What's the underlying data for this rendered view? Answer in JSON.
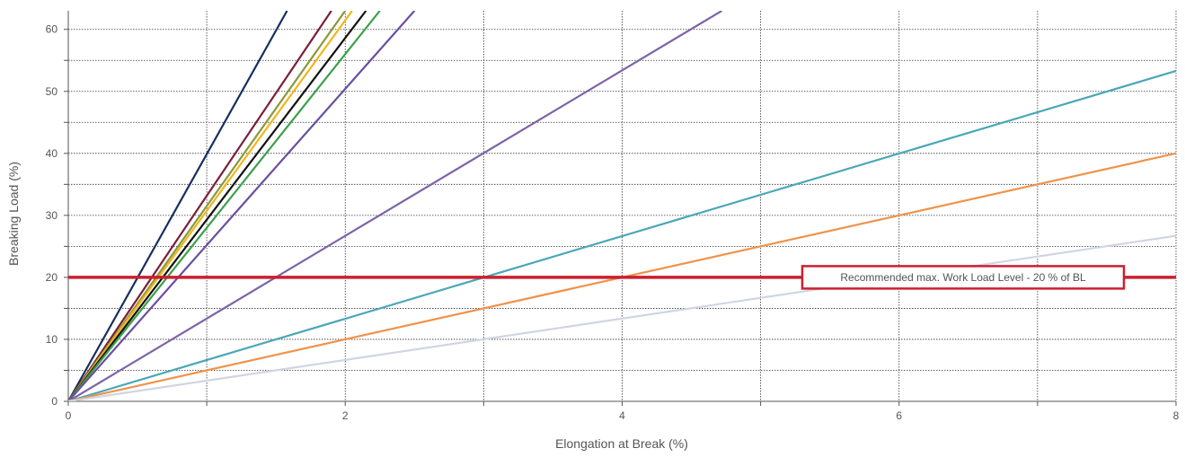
{
  "chart_data": {
    "type": "line",
    "title": "",
    "xlabel": "Elongation at Break (%)",
    "ylabel": "Breaking Load (%)",
    "xlim": [
      0,
      8
    ],
    "ylim": [
      0,
      63
    ],
    "x_ticks": [
      "0",
      "2",
      "4",
      "6",
      "8"
    ],
    "y_ticks": [
      "0",
      "10",
      "20",
      "30",
      "40",
      "50",
      "60"
    ],
    "grid": true,
    "series": [
      {
        "color": "#17305e",
        "x": [
          0,
          1.58
        ],
        "y": [
          0,
          63
        ]
      },
      {
        "color": "#7a1f3a",
        "x": [
          0,
          1.9
        ],
        "y": [
          0,
          63
        ]
      },
      {
        "color": "#8a9a3c",
        "x": [
          0,
          2.0
        ],
        "y": [
          0,
          63
        ]
      },
      {
        "color": "#f2b51a",
        "x": [
          0,
          2.05
        ],
        "y": [
          0,
          63
        ]
      },
      {
        "color": "#111111",
        "x": [
          0,
          2.15
        ],
        "y": [
          0,
          63
        ]
      },
      {
        "color": "#3aa04a",
        "x": [
          0,
          2.25
        ],
        "y": [
          0,
          63
        ]
      },
      {
        "color": "#6a4fa0",
        "x": [
          0,
          2.5
        ],
        "y": [
          0,
          63
        ]
      },
      {
        "color": "#7e64a8",
        "x": [
          0,
          4.72
        ],
        "y": [
          0,
          63
        ]
      },
      {
        "color": "#4aa7b8",
        "x": [
          0,
          8
        ],
        "y": [
          0,
          53.3
        ]
      },
      {
        "color": "#f0924a",
        "x": [
          0,
          8
        ],
        "y": [
          0,
          40
        ]
      },
      {
        "color": "#cfd6e2",
        "x": [
          0,
          8
        ],
        "y": [
          0,
          26.7
        ]
      }
    ],
    "reference_line": {
      "y": 20,
      "color": "#cc1f2f",
      "label": "Recommended max. Work Load Level - 20 % of BL"
    }
  }
}
